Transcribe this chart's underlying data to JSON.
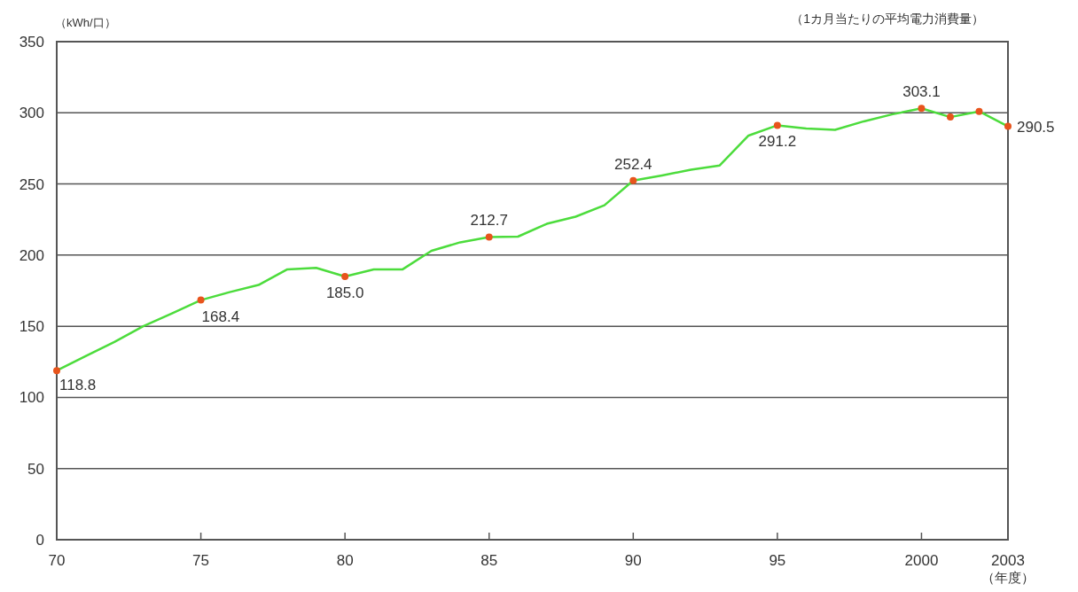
{
  "chart_data": {
    "type": "line",
    "subtitle": "（1カ月当たりの平均電力消費量）",
    "ylabel": "（kWh/口）",
    "xlabel": "（年度）",
    "xlim": [
      1970,
      2003
    ],
    "xticks": [
      {
        "value": 1970,
        "label": "70"
      },
      {
        "value": 1975,
        "label": "75"
      },
      {
        "value": 1980,
        "label": "80"
      },
      {
        "value": 1985,
        "label": "85"
      },
      {
        "value": 1990,
        "label": "90"
      },
      {
        "value": 1995,
        "label": "95"
      },
      {
        "value": 2000,
        "label": "2000"
      },
      {
        "value": 2003,
        "label": "2003"
      }
    ],
    "ylim": [
      0,
      350
    ],
    "yticks": [
      0,
      50,
      100,
      150,
      200,
      250,
      300,
      350
    ],
    "grid": "y",
    "series": [
      {
        "color": "#4cdc3c",
        "x": [
          1970,
          1971,
          1972,
          1973,
          1974,
          1975,
          1976,
          1977,
          1978,
          1979,
          1980,
          1981,
          1982,
          1983,
          1984,
          1985,
          1986,
          1987,
          1988,
          1989,
          1990,
          1991,
          1992,
          1993,
          1994,
          1995,
          1996,
          1997,
          1998,
          1999,
          2000,
          2001,
          2002,
          2003
        ],
        "values": [
          118.8,
          129,
          139,
          150,
          159,
          168.4,
          174,
          179,
          190,
          191,
          185.0,
          190,
          190,
          203,
          209,
          212.7,
          213,
          222,
          227,
          235,
          252.4,
          256,
          260,
          263,
          284,
          291.2,
          289,
          288,
          294,
          299,
          303.1,
          297,
          301,
          290.5
        ]
      },
      {
        "type": "scatter",
        "color": "#e8541c",
        "marker": "circle",
        "x": [
          1970,
          1975,
          1980,
          1985,
          1990,
          1995,
          2000,
          2001,
          2002,
          2003
        ],
        "values": [
          118.8,
          168.4,
          185.0,
          212.7,
          252.4,
          291.2,
          303.1,
          297,
          301,
          290.5
        ],
        "value_labels": [
          "118.8",
          "168.4",
          "185.0",
          "212.7",
          "252.4",
          "291.2",
          "303.1",
          null,
          null,
          "290.5"
        ]
      }
    ]
  }
}
